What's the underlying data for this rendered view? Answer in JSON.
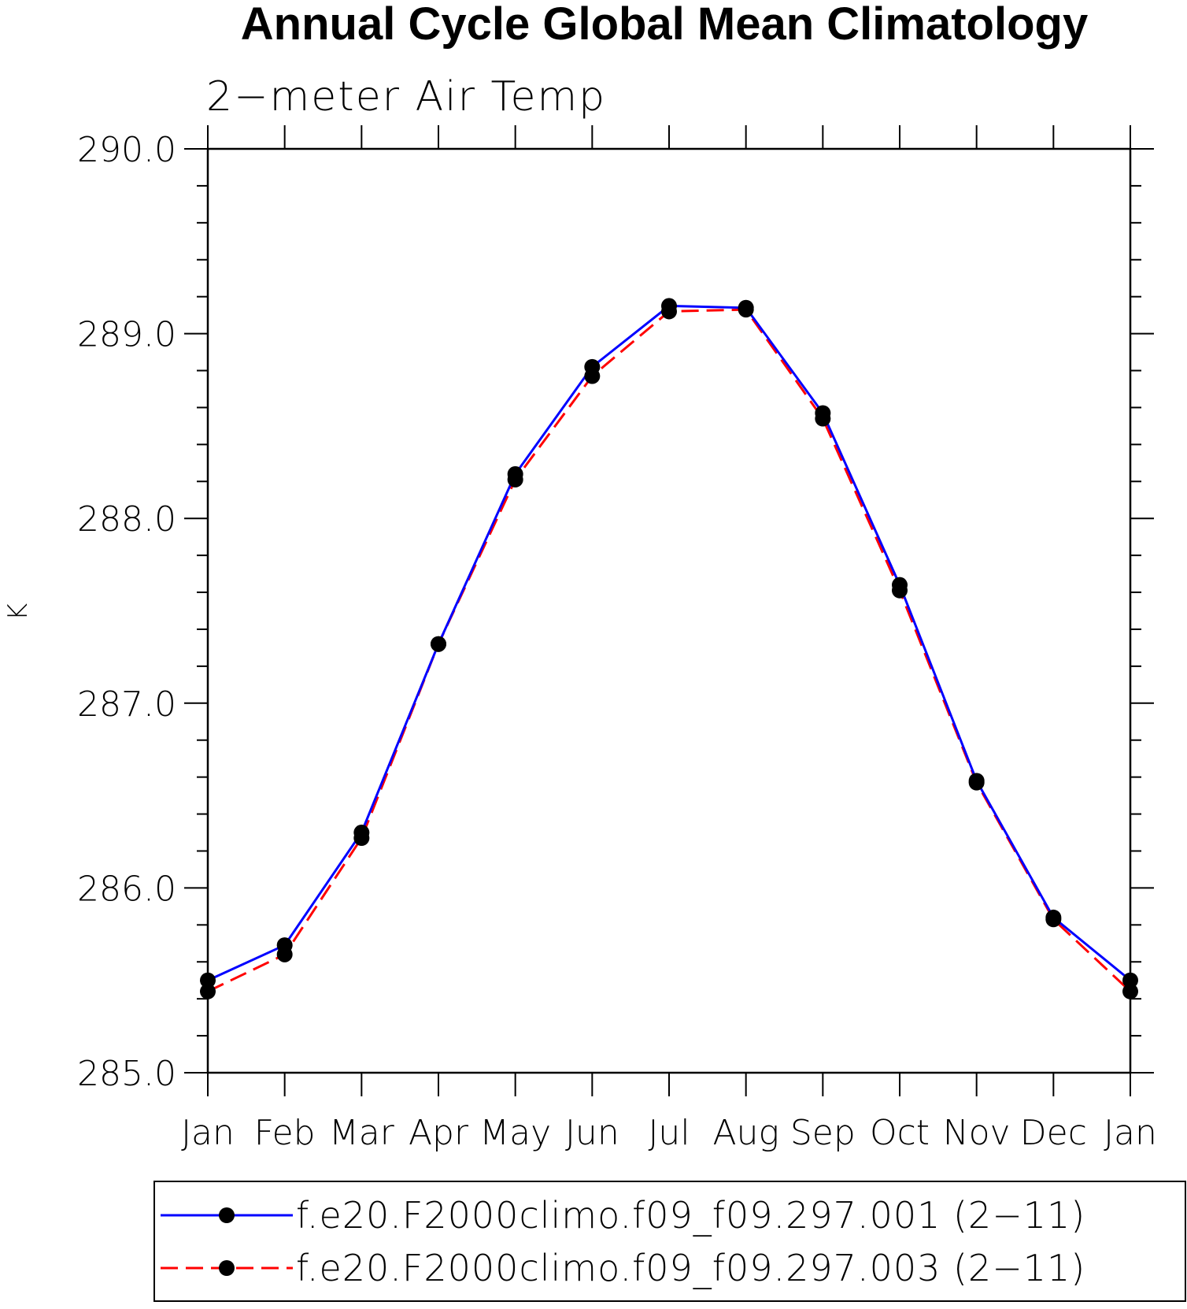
{
  "chart_data": {
    "type": "line",
    "title": "Annual Cycle Global Mean Climatology",
    "subtitle": "2−meter Air Temp",
    "xlabel": "",
    "ylabel": "K",
    "categories": [
      "Jan",
      "Feb",
      "Mar",
      "Apr",
      "May",
      "Jun",
      "Jul",
      "Aug",
      "Sep",
      "Oct",
      "Nov",
      "Dec",
      "Jan"
    ],
    "ylim": [
      285.0,
      290.0
    ],
    "yticks": [
      "285.0",
      "286.0",
      "287.0",
      "288.0",
      "289.0",
      "290.0"
    ],
    "grid": false,
    "legend_position": "bottom",
    "series": [
      {
        "name": "f.e20.F2000climo.f09_f09.297.001 (2−11)",
        "color": "#0000ff",
        "line_style": "solid",
        "marker": "filled-circle",
        "values": [
          285.5,
          285.69,
          286.3,
          287.32,
          288.24,
          288.82,
          289.15,
          289.14,
          288.57,
          287.64,
          286.58,
          285.84,
          285.5
        ]
      },
      {
        "name": "f.e20.F2000climo.f09_f09.297.003 (2−11)",
        "color": "#ff0000",
        "line_style": "dashed",
        "marker": "filled-circle",
        "values": [
          285.44,
          285.64,
          286.27,
          287.32,
          288.21,
          288.77,
          289.12,
          289.13,
          288.54,
          287.61,
          286.57,
          285.83,
          285.44
        ]
      }
    ]
  }
}
